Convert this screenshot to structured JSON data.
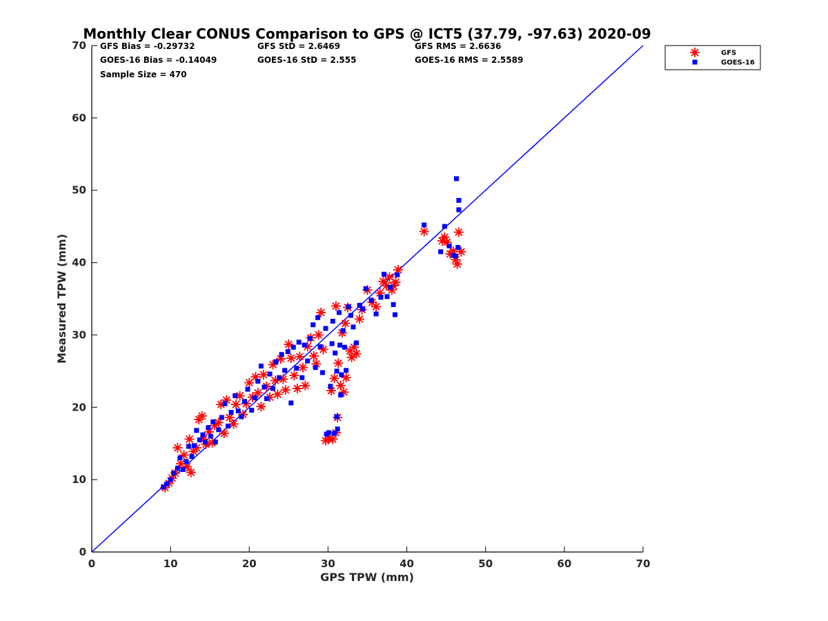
{
  "chart_data": {
    "type": "scatter",
    "title": "Monthly Clear CONUS Comparison to GPS @ ICT5 (37.79, -97.63) 2020-09",
    "xlabel": "GPS TPW (mm)",
    "ylabel": "Measured TPW (mm)",
    "xlim": [
      0,
      70
    ],
    "ylim": [
      0,
      70
    ],
    "xticks": [
      0,
      10,
      20,
      30,
      40,
      50,
      60,
      70
    ],
    "yticks": [
      0,
      10,
      20,
      30,
      40,
      50,
      60,
      70
    ],
    "grid": false,
    "legend_position": "outside-top-right",
    "stats": [
      "GFS Bias = -0.29732",
      "GFS StD = 2.6469",
      "GFS RMS = 2.6636",
      "GOES-16 Bias = -0.14049",
      "GOES-16 StD = 2.555",
      "GOES-16 RMS = 2.5589",
      "Sample Size = 470"
    ],
    "reference_line": {
      "x": [
        0,
        70
      ],
      "y": [
        0,
        70
      ],
      "color": "#0000ff"
    },
    "series": [
      {
        "name": "GFS",
        "marker": "asterisk",
        "color": "#ff0000",
        "points": [
          [
            9.3,
            8.9
          ],
          [
            9.8,
            9.5
          ],
          [
            10.2,
            10.2
          ],
          [
            10.6,
            10.9
          ],
          [
            10.9,
            14.4
          ],
          [
            11.3,
            12.2
          ],
          [
            11.7,
            13.4
          ],
          [
            12.1,
            11.8
          ],
          [
            12.4,
            15.6
          ],
          [
            12.6,
            11.0
          ],
          [
            12.9,
            13.9
          ],
          [
            13.3,
            14.4
          ],
          [
            13.6,
            18.3
          ],
          [
            14.0,
            18.8
          ],
          [
            14.2,
            15.6
          ],
          [
            14.5,
            14.9
          ],
          [
            14.9,
            16.6
          ],
          [
            15.3,
            15.1
          ],
          [
            15.6,
            17.5
          ],
          [
            16.1,
            17.9
          ],
          [
            16.4,
            20.4
          ],
          [
            16.8,
            16.4
          ],
          [
            17.1,
            21.0
          ],
          [
            17.5,
            18.6
          ],
          [
            18.0,
            17.7
          ],
          [
            18.3,
            20.4
          ],
          [
            18.8,
            21.6
          ],
          [
            19.2,
            19.0
          ],
          [
            19.6,
            20.5
          ],
          [
            20.0,
            23.4
          ],
          [
            20.4,
            21.4
          ],
          [
            20.8,
            24.2
          ],
          [
            21.1,
            22.0
          ],
          [
            21.5,
            20.1
          ],
          [
            21.8,
            24.5
          ],
          [
            22.2,
            22.9
          ],
          [
            22.6,
            21.4
          ],
          [
            23.0,
            25.9
          ],
          [
            23.3,
            23.7
          ],
          [
            23.6,
            21.8
          ],
          [
            24.0,
            26.7
          ],
          [
            24.3,
            23.9
          ],
          [
            24.6,
            22.4
          ],
          [
            25.0,
            28.7
          ],
          [
            25.3,
            26.8
          ],
          [
            25.7,
            24.4
          ],
          [
            26.1,
            22.6
          ],
          [
            26.4,
            27.0
          ],
          [
            26.8,
            25.5
          ],
          [
            27.1,
            23.0
          ],
          [
            27.4,
            28.4
          ],
          [
            27.8,
            29.6
          ],
          [
            28.2,
            27.1
          ],
          [
            28.5,
            26.0
          ],
          [
            28.8,
            30.0
          ],
          [
            29.1,
            33.1
          ],
          [
            29.4,
            28.0
          ],
          [
            29.7,
            15.4
          ],
          [
            30.1,
            15.7
          ],
          [
            30.4,
            22.3
          ],
          [
            30.6,
            15.6
          ],
          [
            30.8,
            24.0
          ],
          [
            31.0,
            34.0
          ],
          [
            31.0,
            16.5
          ],
          [
            31.2,
            18.6
          ],
          [
            31.3,
            26.1
          ],
          [
            31.6,
            23.0
          ],
          [
            31.8,
            30.3
          ],
          [
            32.0,
            22.1
          ],
          [
            32.2,
            31.6
          ],
          [
            32.3,
            24.1
          ],
          [
            32.5,
            33.8
          ],
          [
            32.8,
            27.8
          ],
          [
            33.0,
            26.9
          ],
          [
            33.3,
            28.3
          ],
          [
            33.6,
            27.4
          ],
          [
            34.0,
            32.2
          ],
          [
            34.3,
            33.5
          ],
          [
            35.0,
            36.2
          ],
          [
            35.6,
            34.5
          ],
          [
            36.1,
            33.9
          ],
          [
            36.6,
            35.8
          ],
          [
            37.0,
            37.4
          ],
          [
            37.4,
            36.8
          ],
          [
            37.8,
            38.0
          ],
          [
            38.1,
            36.2
          ],
          [
            38.3,
            36.8
          ],
          [
            38.6,
            37.3
          ],
          [
            38.9,
            39.0
          ],
          [
            42.2,
            44.3
          ],
          [
            44.5,
            43.0
          ],
          [
            44.8,
            43.5
          ],
          [
            45.1,
            42.8
          ],
          [
            45.5,
            41.2
          ],
          [
            45.9,
            41.6
          ],
          [
            46.2,
            40.4
          ],
          [
            46.4,
            39.8
          ],
          [
            46.6,
            44.2
          ],
          [
            46.9,
            41.5
          ]
        ]
      },
      {
        "name": "GOES-16",
        "marker": "square",
        "color": "#0000ff",
        "points": [
          [
            9.1,
            9.0
          ],
          [
            9.5,
            9.4
          ],
          [
            10.0,
            10.0
          ],
          [
            10.4,
            10.9
          ],
          [
            10.9,
            11.6
          ],
          [
            11.2,
            13.0
          ],
          [
            11.6,
            11.4
          ],
          [
            12.0,
            12.5
          ],
          [
            12.3,
            14.6
          ],
          [
            12.7,
            13.2
          ],
          [
            13.0,
            14.7
          ],
          [
            13.3,
            16.8
          ],
          [
            13.7,
            15.5
          ],
          [
            14.1,
            16.2
          ],
          [
            14.4,
            15.2
          ],
          [
            14.8,
            17.2
          ],
          [
            15.1,
            16.0
          ],
          [
            15.4,
            18.0
          ],
          [
            15.7,
            15.2
          ],
          [
            16.1,
            16.9
          ],
          [
            16.5,
            18.6
          ],
          [
            16.9,
            20.5
          ],
          [
            17.3,
            17.4
          ],
          [
            17.7,
            19.3
          ],
          [
            18.2,
            21.6
          ],
          [
            18.6,
            19.5
          ],
          [
            19.0,
            18.7
          ],
          [
            19.4,
            20.8
          ],
          [
            19.8,
            22.5
          ],
          [
            20.3,
            19.6
          ],
          [
            20.7,
            21.3
          ],
          [
            21.1,
            23.6
          ],
          [
            21.5,
            25.7
          ],
          [
            21.9,
            22.8
          ],
          [
            22.2,
            21.2
          ],
          [
            22.6,
            24.6
          ],
          [
            23.0,
            22.6
          ],
          [
            23.4,
            26.3
          ],
          [
            23.8,
            24.1
          ],
          [
            24.1,
            27.3
          ],
          [
            24.5,
            25.1
          ],
          [
            24.9,
            27.7
          ],
          [
            25.3,
            20.6
          ],
          [
            25.6,
            28.3
          ],
          [
            26.0,
            25.4
          ],
          [
            26.3,
            29.0
          ],
          [
            26.7,
            24.1
          ],
          [
            27.0,
            28.6
          ],
          [
            27.4,
            26.4
          ],
          [
            27.7,
            29.5
          ],
          [
            28.1,
            31.4
          ],
          [
            28.4,
            25.5
          ],
          [
            28.7,
            32.4
          ],
          [
            29.0,
            28.4
          ],
          [
            29.3,
            24.8
          ],
          [
            29.7,
            30.9
          ],
          [
            29.8,
            16.3
          ],
          [
            30.1,
            16.5
          ],
          [
            30.3,
            22.9
          ],
          [
            30.5,
            28.8
          ],
          [
            30.6,
            31.9
          ],
          [
            30.8,
            16.4
          ],
          [
            30.9,
            27.5
          ],
          [
            31.1,
            25.0
          ],
          [
            31.1,
            18.7
          ],
          [
            31.2,
            17.0
          ],
          [
            31.4,
            33.1
          ],
          [
            31.5,
            28.6
          ],
          [
            31.6,
            21.7
          ],
          [
            31.7,
            24.5
          ],
          [
            31.9,
            30.6
          ],
          [
            32.1,
            28.3
          ],
          [
            32.3,
            25.1
          ],
          [
            32.6,
            33.9
          ],
          [
            32.9,
            32.7
          ],
          [
            33.2,
            31.1
          ],
          [
            33.6,
            28.9
          ],
          [
            34.0,
            34.1
          ],
          [
            34.4,
            33.6
          ],
          [
            34.8,
            36.4
          ],
          [
            35.5,
            34.8
          ],
          [
            36.1,
            32.9
          ],
          [
            36.7,
            35.2
          ],
          [
            37.1,
            38.4
          ],
          [
            37.5,
            35.3
          ],
          [
            37.9,
            36.6
          ],
          [
            38.3,
            34.2
          ],
          [
            38.5,
            32.8
          ],
          [
            38.8,
            38.3
          ],
          [
            42.2,
            45.2
          ],
          [
            44.3,
            41.5
          ],
          [
            44.8,
            45.0
          ],
          [
            45.4,
            42.3
          ],
          [
            45.9,
            41.0
          ],
          [
            46.2,
            40.9
          ],
          [
            46.3,
            51.6
          ],
          [
            46.5,
            42.1
          ],
          [
            46.6,
            48.6
          ],
          [
            46.6,
            47.3
          ]
        ]
      }
    ]
  }
}
